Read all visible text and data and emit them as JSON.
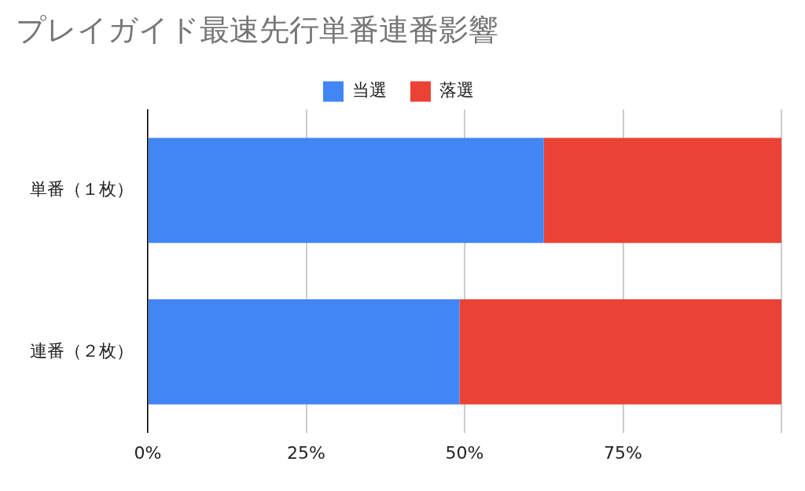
{
  "chart_data": {
    "type": "bar",
    "title": "プレイガイド最速先行単番連番影響",
    "orientation": "horizontal",
    "stacked": true,
    "categories": [
      "単番（１枚）",
      "連番（２枚）"
    ],
    "series": [
      {
        "name": "当選",
        "color": "#4285f4",
        "values": [
          62.5,
          49.2
        ]
      },
      {
        "name": "落選",
        "color": "#ea4335",
        "values": [
          37.5,
          50.8
        ]
      }
    ],
    "xlim": [
      0,
      100
    ],
    "xticks": [
      {
        "value": 0,
        "label": "0%"
      },
      {
        "value": 25,
        "label": "25%"
      },
      {
        "value": 50,
        "label": "50%"
      },
      {
        "value": 75,
        "label": "75%"
      },
      {
        "value": 100,
        "label": null
      }
    ],
    "grid": "x",
    "legend": "top"
  }
}
